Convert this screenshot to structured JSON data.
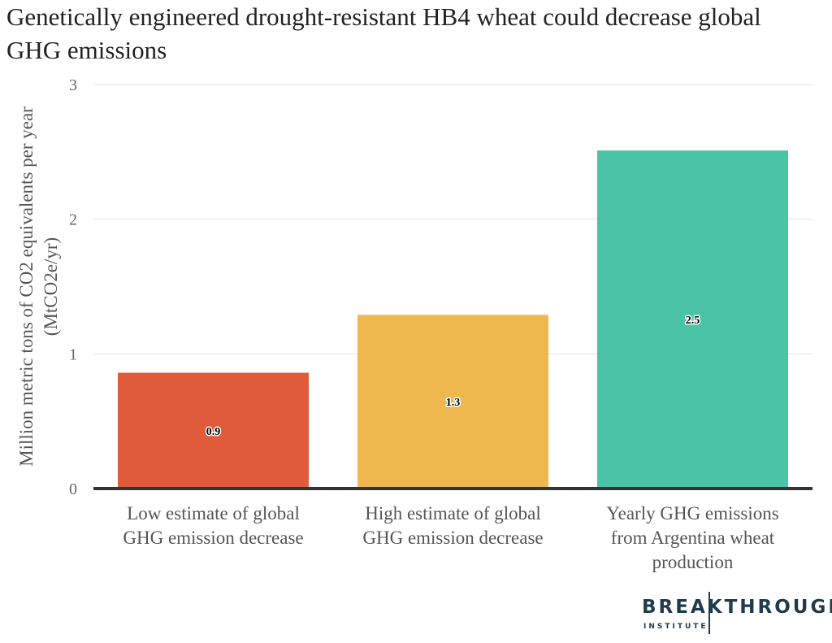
{
  "chart_data": {
    "type": "bar",
    "title": "Genetically engineered drought-resistant HB4 wheat could decrease global GHG emissions",
    "ylabel": [
      "Million metric tons of CO2 equivalents per year",
      "(MtCO2e/yr)"
    ],
    "xlabel": "",
    "categories": [
      [
        "Low estimate of global",
        "GHG emission decrease"
      ],
      [
        "High estimate of global",
        "GHG emission decrease"
      ],
      [
        "Yearly GHG emissions",
        "from Argentina wheat",
        "production"
      ]
    ],
    "values": [
      0.86,
      1.29,
      2.51
    ],
    "data_labels": [
      "0.9",
      "1.3",
      "2.5"
    ],
    "colors": [
      "#e05a3c",
      "#eeb84e",
      "#4bc3a6"
    ],
    "ylim": [
      0,
      3
    ],
    "yticks": [
      0,
      1,
      2,
      3
    ],
    "grid": true,
    "legend": "none"
  },
  "logo": {
    "main": "BREAKTHROUGH",
    "sub": "INSTITUTE",
    "color": "#1f3b4d"
  }
}
